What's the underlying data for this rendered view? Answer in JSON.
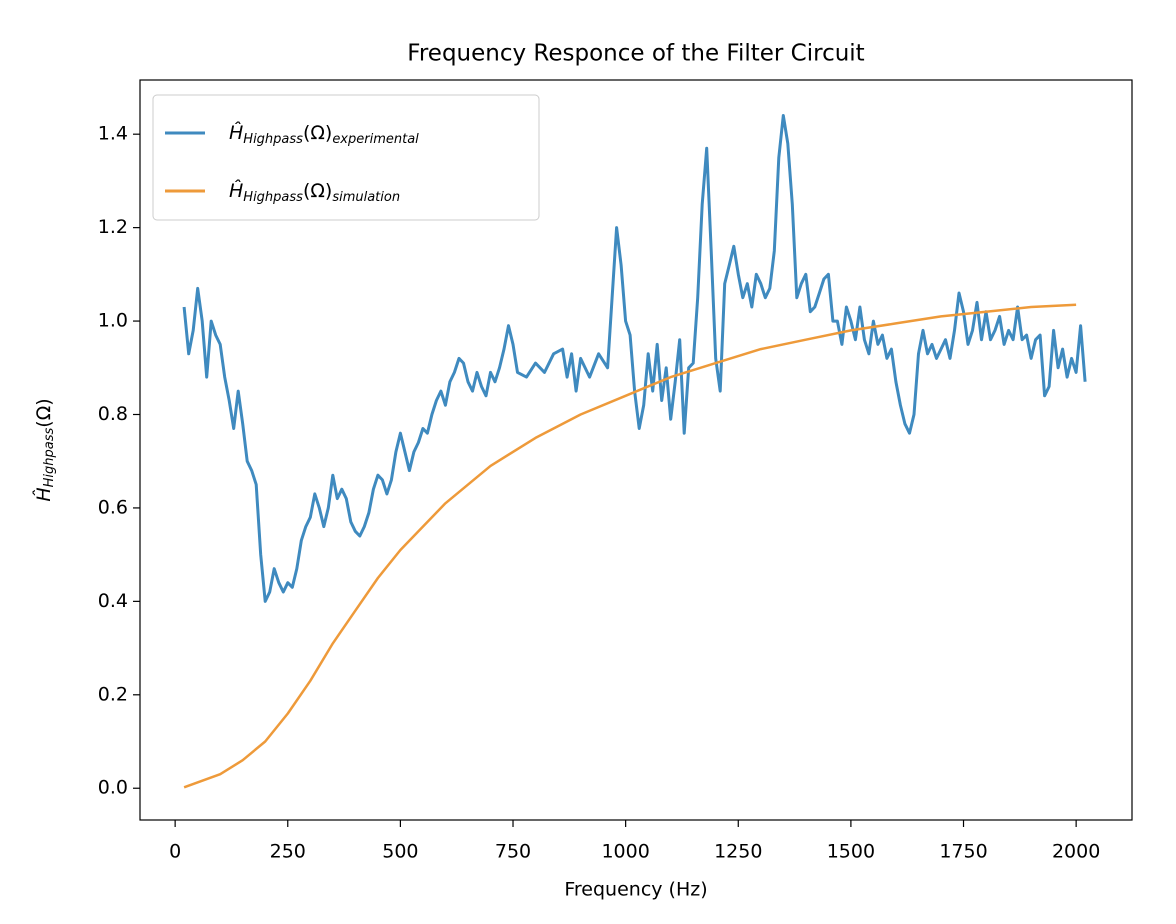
{
  "chart_data": {
    "type": "line",
    "title": "Frequency Responce of the Filter Circuit",
    "xlabel": "Frequency (Hz)",
    "ylabel": [
      "Ĥ",
      "Highpass",
      "(Ω)"
    ],
    "xlim": [
      -78,
      2124
    ],
    "ylim": [
      -0.068,
      1.516
    ],
    "xticks": [
      0,
      250,
      500,
      750,
      1000,
      1250,
      1500,
      1750,
      2000
    ],
    "yticks": [
      {
        "value": 0,
        "label": "0.0"
      },
      {
        "value": 0.2,
        "label": "0.2"
      },
      {
        "value": 0.4,
        "label": "0.4"
      },
      {
        "value": 0.6,
        "label": "0.6"
      },
      {
        "value": 0.8,
        "label": "0.8"
      },
      {
        "value": 1,
        "label": "1.0"
      },
      {
        "value": 1.2,
        "label": "1.2"
      },
      {
        "value": 1.4,
        "label": "1.4"
      }
    ],
    "legend": "upper left",
    "grid": false,
    "series": [
      {
        "name": [
          "Ĥ",
          "Highpass",
          "(Ω)",
          "experimental"
        ],
        "color": "#3f8abf",
        "x": [
          20,
          30,
          40,
          50,
          60,
          70,
          80,
          90,
          100,
          110,
          120,
          130,
          140,
          150,
          160,
          170,
          180,
          190,
          200,
          210,
          220,
          230,
          240,
          250,
          260,
          270,
          280,
          290,
          300,
          310,
          320,
          330,
          340,
          350,
          360,
          370,
          380,
          390,
          400,
          410,
          420,
          430,
          440,
          450,
          460,
          470,
          480,
          490,
          500,
          510,
          520,
          530,
          540,
          550,
          560,
          570,
          580,
          590,
          600,
          610,
          620,
          630,
          640,
          650,
          660,
          670,
          680,
          690,
          700,
          710,
          720,
          730,
          740,
          750,
          760,
          780,
          800,
          820,
          840,
          860,
          870,
          880,
          890,
          900,
          920,
          940,
          960,
          970,
          980,
          990,
          1000,
          1010,
          1020,
          1030,
          1040,
          1050,
          1060,
          1070,
          1080,
          1090,
          1100,
          1110,
          1120,
          1130,
          1140,
          1150,
          1160,
          1170,
          1180,
          1190,
          1200,
          1210,
          1220,
          1230,
          1240,
          1250,
          1260,
          1270,
          1280,
          1290,
          1300,
          1310,
          1320,
          1330,
          1340,
          1350,
          1360,
          1370,
          1380,
          1390,
          1400,
          1410,
          1420,
          1430,
          1440,
          1450,
          1460,
          1470,
          1480,
          1490,
          1500,
          1510,
          1520,
          1530,
          1540,
          1550,
          1560,
          1570,
          1580,
          1590,
          1600,
          1610,
          1620,
          1630,
          1640,
          1650,
          1660,
          1670,
          1680,
          1690,
          1700,
          1710,
          1720,
          1730,
          1740,
          1750,
          1760,
          1770,
          1780,
          1790,
          1800,
          1810,
          1820,
          1830,
          1840,
          1850,
          1860,
          1870,
          1880,
          1890,
          1900,
          1910,
          1920,
          1930,
          1940,
          1950,
          1960,
          1970,
          1980,
          1990,
          2000,
          2010,
          2020
        ],
        "values": [
          1.03,
          0.93,
          0.98,
          1.07,
          1.0,
          0.88,
          1.0,
          0.97,
          0.95,
          0.88,
          0.83,
          0.77,
          0.85,
          0.78,
          0.7,
          0.68,
          0.65,
          0.5,
          0.4,
          0.42,
          0.47,
          0.44,
          0.42,
          0.44,
          0.43,
          0.47,
          0.53,
          0.56,
          0.58,
          0.63,
          0.6,
          0.56,
          0.6,
          0.67,
          0.62,
          0.64,
          0.62,
          0.57,
          0.55,
          0.54,
          0.56,
          0.59,
          0.64,
          0.67,
          0.66,
          0.63,
          0.66,
          0.72,
          0.76,
          0.72,
          0.68,
          0.72,
          0.74,
          0.77,
          0.76,
          0.8,
          0.83,
          0.85,
          0.82,
          0.87,
          0.89,
          0.92,
          0.91,
          0.87,
          0.85,
          0.89,
          0.86,
          0.84,
          0.89,
          0.87,
          0.9,
          0.94,
          0.99,
          0.95,
          0.89,
          0.88,
          0.91,
          0.89,
          0.93,
          0.94,
          0.88,
          0.93,
          0.85,
          0.92,
          0.88,
          0.93,
          0.9,
          1.05,
          1.2,
          1.12,
          1.0,
          0.97,
          0.85,
          0.77,
          0.82,
          0.93,
          0.85,
          0.95,
          0.83,
          0.9,
          0.79,
          0.87,
          0.96,
          0.76,
          0.9,
          0.91,
          1.05,
          1.25,
          1.37,
          1.15,
          0.92,
          0.85,
          1.08,
          1.12,
          1.16,
          1.1,
          1.05,
          1.08,
          1.03,
          1.1,
          1.08,
          1.05,
          1.07,
          1.15,
          1.35,
          1.44,
          1.38,
          1.25,
          1.05,
          1.08,
          1.1,
          1.02,
          1.03,
          1.06,
          1.09,
          1.1,
          1.0,
          1.0,
          0.95,
          1.03,
          1.0,
          0.96,
          1.03,
          0.96,
          0.93,
          1.0,
          0.95,
          0.97,
          0.92,
          0.94,
          0.87,
          0.82,
          0.78,
          0.76,
          0.8,
          0.93,
          0.98,
          0.93,
          0.95,
          0.92,
          0.94,
          0.96,
          0.92,
          0.98,
          1.06,
          1.02,
          0.95,
          0.98,
          1.04,
          0.96,
          1.02,
          0.96,
          0.98,
          1.01,
          0.95,
          0.98,
          0.96,
          1.03,
          0.96,
          0.97,
          0.92,
          0.96,
          0.97,
          0.84,
          0.86,
          0.98,
          0.9,
          0.94,
          0.88,
          0.92,
          0.89,
          0.99,
          0.87
        ]
      },
      {
        "name": [
          "Ĥ",
          "Highpass",
          "(Ω)",
          "simulation"
        ],
        "color": "#ee9a3a",
        "x": [
          20,
          100,
          150,
          200,
          250,
          300,
          350,
          400,
          450,
          500,
          550,
          600,
          700,
          800,
          900,
          1000,
          1100,
          1200,
          1300,
          1400,
          1500,
          1600,
          1700,
          1800,
          1900,
          2000
        ],
        "values": [
          0.002,
          0.03,
          0.06,
          0.1,
          0.16,
          0.23,
          0.31,
          0.38,
          0.45,
          0.51,
          0.56,
          0.61,
          0.69,
          0.75,
          0.8,
          0.84,
          0.88,
          0.91,
          0.94,
          0.96,
          0.98,
          0.995,
          1.01,
          1.02,
          1.03,
          1.035
        ]
      }
    ]
  }
}
